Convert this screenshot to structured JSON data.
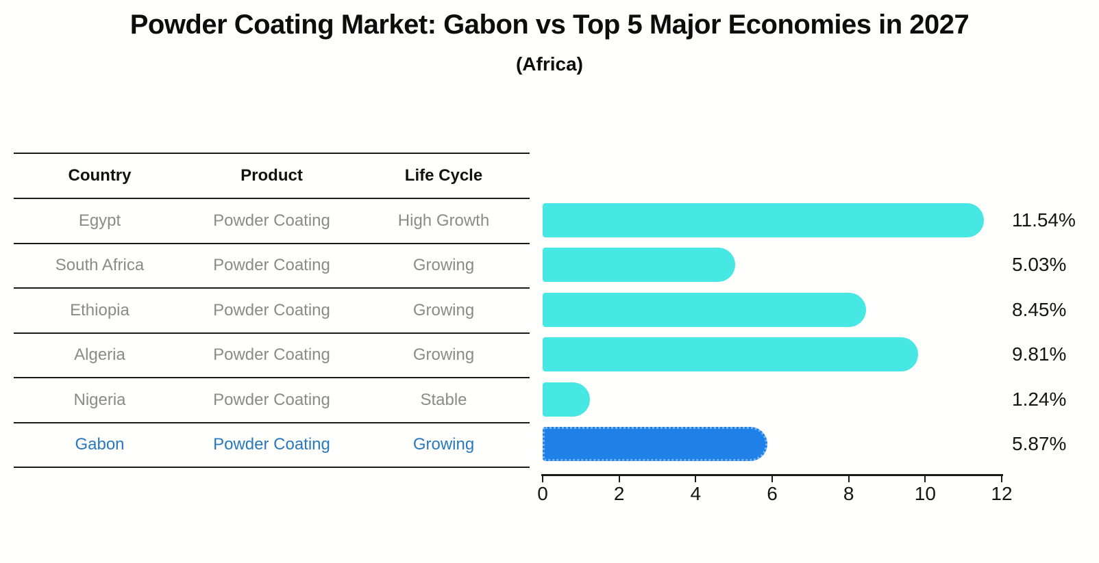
{
  "title": "Powder Coating Market: Gabon vs Top 5 Major Economies in 2027",
  "subtitle": "(Africa)",
  "colors": {
    "bar_default": "#47e7e4",
    "bar_highlight": "#1f80e8",
    "bar_highlight_border": "#7ab6f7",
    "highlight_text": "#2878be",
    "table_text": "#8a8a8a",
    "header_text": "#111111",
    "axis_text": "#141414"
  },
  "table": {
    "columns": [
      "Country",
      "Product",
      "Life Cycle"
    ],
    "rows": [
      {
        "cells": [
          "Egypt",
          "Powder Coating",
          "High Growth"
        ],
        "highlight": false
      },
      {
        "cells": [
          "South Africa",
          "Powder Coating",
          "Growing"
        ],
        "highlight": false
      },
      {
        "cells": [
          "Ethiopia",
          "Powder Coating",
          "Growing"
        ],
        "highlight": false
      },
      {
        "cells": [
          "Algeria",
          "Powder Coating",
          "Growing"
        ],
        "highlight": false
      },
      {
        "cells": [
          "Nigeria",
          "Powder Coating",
          "Stable"
        ],
        "highlight": false
      },
      {
        "cells": [
          "Gabon",
          "Powder Coating",
          "Growing"
        ],
        "highlight": true
      }
    ]
  },
  "chart_data": {
    "type": "bar",
    "orientation": "horizontal",
    "title": "Powder Coating Market: Gabon vs Top 5 Major Economies in 2027 (Africa)",
    "categories": [
      "Egypt",
      "South Africa",
      "Ethiopia",
      "Algeria",
      "Nigeria",
      "Gabon"
    ],
    "values": [
      11.54,
      5.03,
      8.45,
      9.81,
      1.24,
      5.87
    ],
    "value_labels": [
      "11.54%",
      "5.03%",
      "8.45%",
      "9.81%",
      "1.24%",
      "5.87%"
    ],
    "highlight_category": "Gabon",
    "xlabel": "",
    "ylabel": "",
    "xlim": [
      0,
      12
    ],
    "x_ticks": [
      0,
      2,
      4,
      6,
      8,
      10,
      12
    ],
    "grid": false,
    "legend": false
  }
}
